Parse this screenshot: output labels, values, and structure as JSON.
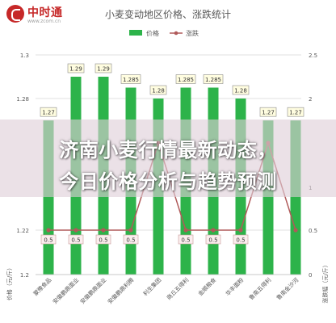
{
  "logo": {
    "name": "中时通",
    "url": "www.zcom.cn"
  },
  "headline": {
    "line1": "济南小麦行情最新动态，",
    "line2": "今日价格分析与趋势预测"
  },
  "chart_data": {
    "type": "bar",
    "title": "小麦变动地区价格、涨跌统计",
    "categories": [
      "蒙豫食品",
      "安徽鹏鼎面业",
      "安徽鹏鼎面业",
      "安徽鹏鼎利腾",
      "利生集团",
      "商丘五得利",
      "金顺粮食",
      "华丰面粉",
      "鲁南五得利",
      "鲁南金沙河"
    ],
    "series": [
      {
        "name": "价格",
        "type": "bar",
        "color": "#2db34a",
        "axis": "left",
        "values": [
          1.27,
          1.29,
          1.29,
          1.285,
          1.28,
          1.285,
          1.285,
          1.28,
          1.27,
          1.27
        ]
      },
      {
        "name": "涨跌",
        "type": "line",
        "color": "#b05a5a",
        "axis": "right",
        "values": [
          0.5,
          0.5,
          0.5,
          0.5,
          1.5,
          0.5,
          0.5,
          0.5,
          1.5,
          0.5
        ]
      }
    ],
    "value_labels": [
      "1.27",
      "1.29",
      "1.29",
      "1.285",
      "1.28",
      "1.285",
      "1.285",
      "1.28",
      "1.27",
      "1.27"
    ],
    "change_labels": [
      "0.5",
      "0.5",
      "0.5",
      "0.5",
      "",
      "0.5",
      "0.5",
      "0.5",
      "",
      ""
    ],
    "y_left": {
      "label": "价格（元/斤）",
      "ticks": [
        "1.3",
        "1.28",
        "1.22",
        "1.2"
      ],
      "ylim": [
        1.2,
        1.3
      ]
    },
    "y_right": {
      "label": "涨跌幅（元/斤）",
      "ticks": [
        "2.5",
        "2",
        "1",
        "0.5",
        "0"
      ],
      "ylim": [
        0,
        2.5
      ]
    },
    "grid": true,
    "legend": "top-center"
  }
}
